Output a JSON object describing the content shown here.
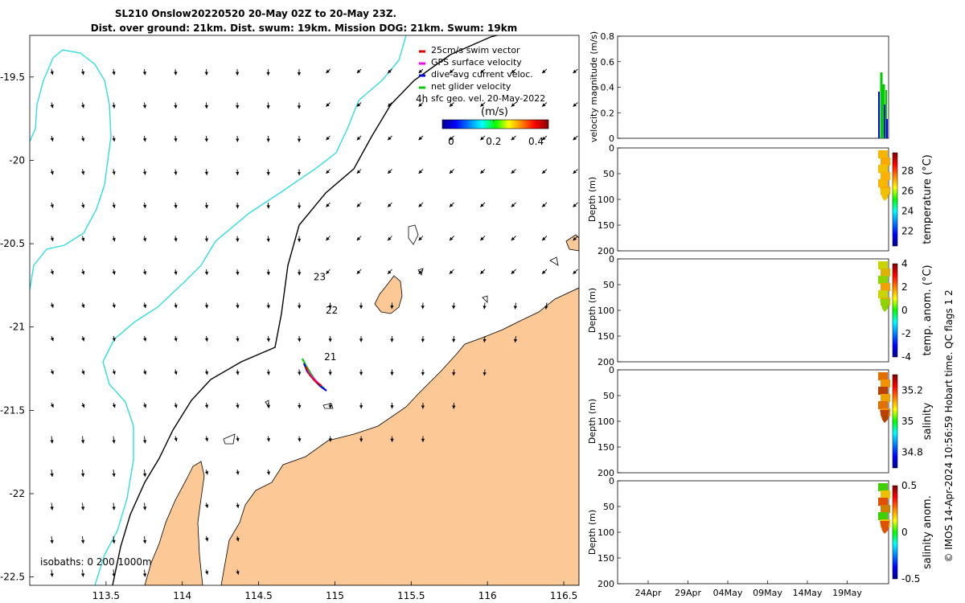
{
  "title": {
    "line1": "SL210 Onslow20220520 20-May 02Z to 20-May 23Z.",
    "line2": "Dist. over ground: 21km. Dist. swum: 19km. Mission DOG: 21km. Swum: 19km"
  },
  "footer": "© IMOS 14-Apr-2024 10:56:59 Hobart time. QC flags 1  2",
  "chart_data": [
    {
      "type": "scatter",
      "subtype": "map",
      "x_ticks": [
        113.5,
        114,
        114.5,
        115,
        115.5,
        116,
        116.5
      ],
      "x_tick_labels": [
        "113.5",
        "114",
        "114.5",
        "115",
        "115.5",
        "116",
        "116.5"
      ],
      "y_ticks": [
        -19.5,
        -20,
        -20.5,
        -21,
        -21.5,
        -22,
        -22.5
      ],
      "y_tick_labels": [
        "-19.5",
        "-20",
        "-20.5",
        "-21",
        "-21.5",
        "-22",
        "-22.5"
      ],
      "xlim": [
        113.0,
        116.6
      ],
      "ylim": [
        -22.55,
        -19.25
      ],
      "legend": {
        "placement": "top-right",
        "entries": [
          {
            "label": "25cm/s swim vector",
            "color": "#e00000"
          },
          {
            "label": "GPS surface velocity",
            "color": "#ff00ff"
          },
          {
            "label": "dive-avg current veloc.",
            "color": "#0000ee"
          },
          {
            "label": "net glider velocity",
            "color": "#00cc00"
          },
          {
            "label": "sfc geo. vel. 20-May-2022",
            "color": "#000000"
          }
        ]
      },
      "colorbar": {
        "label": "(m/s)",
        "range": [
          0,
          0.5
        ],
        "ticks": [
          0,
          0.2,
          0.4
        ],
        "tick_labels": [
          "0",
          "0.2",
          "0.4"
        ]
      },
      "track_labels": [
        {
          "text": "4h",
          "x": 115.57,
          "y": -19.65
        },
        {
          "text": "23",
          "x": 114.9,
          "y": -20.72
        },
        {
          "text": "22",
          "x": 114.98,
          "y": -20.92
        },
        {
          "text": "21",
          "x": 114.97,
          "y": -21.2
        }
      ],
      "isobath_label": "isobaths: 0   200  1000m",
      "colors": {
        "land": "#fbc896",
        "isobath_200": "#000000",
        "isobath_1000": "#33dddd"
      }
    },
    {
      "type": "bar",
      "ylabel": "velocity magnitude (m/s)",
      "ylim": [
        0,
        0.8
      ],
      "y_ticks": [
        0,
        0.2,
        0.4,
        0.6,
        0.8
      ],
      "y_tick_labels": [
        "0",
        "0.2",
        "0.4",
        "0.6",
        "0.8"
      ]
    },
    {
      "type": "heatmap",
      "ylabel": "Depth (m)",
      "y_tick_labels": [
        "0",
        "50",
        "100",
        "150",
        "200"
      ],
      "colorbar_label": "temperature (°C)",
      "colorbar_range": [
        20.5,
        29.8
      ],
      "colorbar_ticks": [
        22,
        24,
        26,
        28
      ],
      "colorbar_tick_labels": [
        "22",
        "24",
        "26",
        "28"
      ]
    },
    {
      "type": "heatmap",
      "ylabel": "Depth (m)",
      "y_tick_labels": [
        "0",
        "50",
        "100",
        "150",
        "200"
      ],
      "colorbar_label": "temp. anom. (°C)",
      "colorbar_range": [
        -4,
        4
      ],
      "colorbar_ticks": [
        -4,
        -2,
        0,
        2,
        4
      ],
      "colorbar_tick_labels": [
        "-4",
        "-2",
        "0",
        "2",
        "4"
      ]
    },
    {
      "type": "heatmap",
      "ylabel": "Depth (m)",
      "y_tick_labels": [
        "0",
        "50",
        "100",
        "150",
        "200"
      ],
      "colorbar_label": "salinity",
      "colorbar_range": [
        34.7,
        35.3
      ],
      "colorbar_ticks": [
        34.8,
        35,
        35.2
      ],
      "colorbar_tick_labels": [
        "34.8",
        "35",
        "35.2"
      ]
    },
    {
      "type": "heatmap",
      "ylabel": "Depth (m)",
      "y_tick_labels": [
        "0",
        "50",
        "100",
        "150",
        "200"
      ],
      "colorbar_label": "salinity anom.",
      "colorbar_range": [
        -0.5,
        0.5
      ],
      "colorbar_ticks": [
        -0.5,
        0,
        0.5
      ],
      "colorbar_tick_labels": [
        "-0.5",
        "0",
        "0.5"
      ],
      "x_tick_labels": [
        "24Apr",
        "29Apr",
        "04May",
        "09May",
        "14May",
        "19May"
      ]
    }
  ]
}
